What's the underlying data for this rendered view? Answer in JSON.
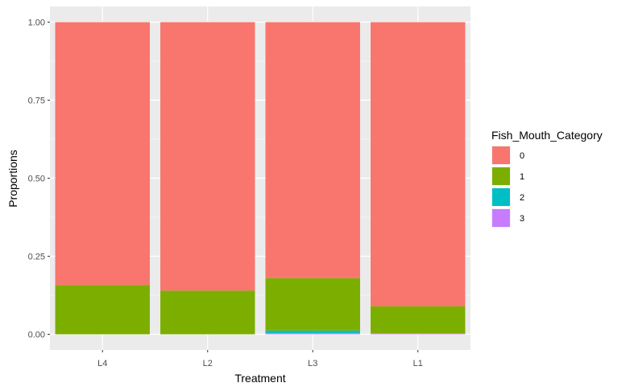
{
  "chart_data": {
    "type": "bar",
    "stacked": true,
    "xlabel": "Treatment",
    "ylabel": "Proportions",
    "ylim": [
      0,
      1
    ],
    "yticks": [
      "0.00",
      "0.25",
      "0.50",
      "0.75",
      "1.00"
    ],
    "categories": [
      "L4",
      "L2",
      "L3",
      "L1"
    ],
    "series": [
      {
        "name": "3",
        "color": "#C77CFF",
        "values": [
          0.0,
          0.0,
          0.004,
          0.003
        ]
      },
      {
        "name": "2",
        "color": "#00BFC4",
        "values": [
          0.0,
          0.0,
          0.008,
          0.0
        ]
      },
      {
        "name": "1",
        "color": "#7CAE00",
        "values": [
          0.158,
          0.14,
          0.168,
          0.087
        ]
      },
      {
        "name": "0",
        "color": "#F8766D",
        "values": [
          0.842,
          0.86,
          0.82,
          0.91
        ]
      }
    ],
    "legend": {
      "title": "Fish_Mouth_Category",
      "position": "right",
      "items": [
        {
          "label": "0",
          "color": "#F8766D"
        },
        {
          "label": "1",
          "color": "#7CAE00"
        },
        {
          "label": "2",
          "color": "#00BFC4"
        },
        {
          "label": "3",
          "color": "#C77CFF"
        }
      ]
    },
    "grid": true,
    "panel_background": "#EBEBEB"
  }
}
